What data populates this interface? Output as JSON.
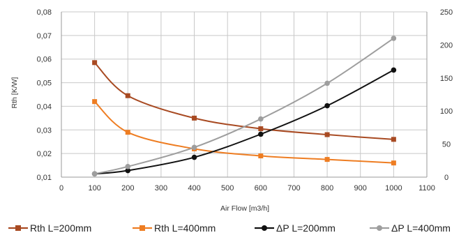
{
  "chart_data": {
    "type": "line",
    "title": "",
    "xlabel": "Air Flow [m3/h]",
    "ylabel": "Rth [K/W]",
    "y2label": "",
    "x_ticks": [
      0,
      100,
      200,
      300,
      400,
      500,
      600,
      700,
      800,
      900,
      1000,
      1100
    ],
    "xlim": [
      0,
      1100
    ],
    "ylim": [
      0.01,
      0.08
    ],
    "y_ticks": [
      "0,01",
      "0,02",
      "0,03",
      "0,04",
      "0,05",
      "0,06",
      "0,07",
      "0,08"
    ],
    "y2lim": [
      0,
      250
    ],
    "y2_ticks": [
      "0",
      "50",
      "100",
      "150",
      "200",
      "250"
    ],
    "grid": true,
    "legend_position": "bottom",
    "series": [
      {
        "name": "Rth L=200mm",
        "axis": "left",
        "color": "#a84a22",
        "marker": "square",
        "x": [
          100,
          200,
          400,
          600,
          800,
          1000
        ],
        "y": [
          0.0585,
          0.0445,
          0.035,
          0.0305,
          0.028,
          0.026
        ]
      },
      {
        "name": "Rth L=400mm",
        "axis": "left",
        "color": "#ee7d22",
        "marker": "square",
        "x": [
          100,
          200,
          400,
          600,
          800,
          1000
        ],
        "y": [
          0.042,
          0.029,
          0.022,
          0.019,
          0.0175,
          0.016
        ]
      },
      {
        "name": "ΔP L=200mm",
        "axis": "right",
        "color": "#111111",
        "marker": "circle",
        "x": [
          100,
          200,
          400,
          600,
          800,
          1000
        ],
        "y": [
          5,
          10,
          30,
          65,
          108,
          162
        ]
      },
      {
        "name": "ΔP L=400mm",
        "axis": "right",
        "color": "#9e9e9e",
        "marker": "circle",
        "x": [
          100,
          200,
          400,
          600,
          800,
          1000
        ],
        "y": [
          5,
          16,
          45,
          88,
          142,
          210
        ]
      }
    ]
  }
}
